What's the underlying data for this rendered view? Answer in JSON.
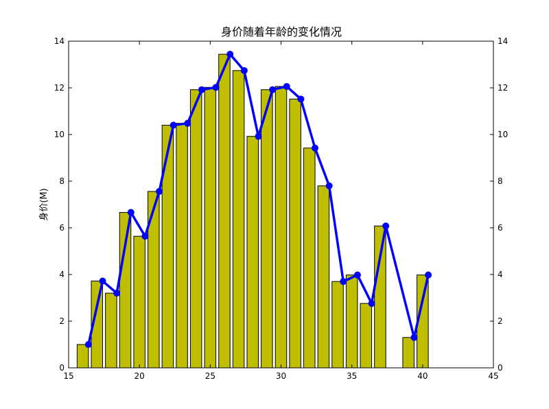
{
  "chart_data": {
    "type": "bar",
    "title": "身价随着年龄的变化情况",
    "xlabel": "",
    "ylabel": "身价(M)",
    "xlim": [
      15,
      45
    ],
    "ylim": [
      0,
      14
    ],
    "x_ticks": [
      15,
      20,
      25,
      30,
      35,
      40,
      45
    ],
    "y_ticks": [
      0,
      2,
      4,
      6,
      8,
      10,
      12,
      14
    ],
    "right_y_ticks": [
      0,
      2,
      4,
      6,
      8,
      10,
      12,
      14
    ],
    "grid": false,
    "bar_color": "#bfbf00",
    "line_color": "#0000ff",
    "x": [
      16,
      17,
      18,
      19,
      20,
      21,
      22,
      23,
      24,
      25,
      26,
      27,
      28,
      29,
      30,
      31,
      32,
      33,
      34,
      35,
      36,
      37,
      39,
      40
    ],
    "values": [
      1.0,
      3.72,
      3.2,
      6.66,
      5.64,
      7.56,
      10.4,
      10.48,
      11.92,
      12.02,
      13.44,
      12.74,
      9.92,
      11.92,
      12.06,
      11.52,
      9.42,
      7.8,
      3.7,
      3.98,
      2.76,
      6.08,
      1.3,
      3.98
    ],
    "series": [
      {
        "type": "bar"
      },
      {
        "type": "line",
        "marker": "circle"
      }
    ]
  }
}
